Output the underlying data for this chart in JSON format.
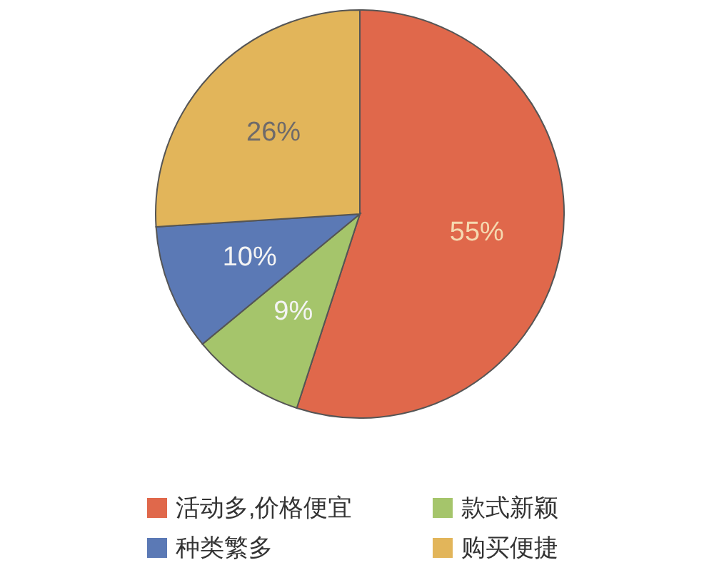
{
  "chart_data": {
    "type": "pie",
    "categories": [
      "活动多,价格便宜",
      "款式新颖",
      "种类繁多",
      "购买便捷"
    ],
    "values": [
      55,
      9,
      10,
      26
    ],
    "colors": [
      "#e0684b",
      "#a5c56b",
      "#5b79b5",
      "#e2b55a"
    ],
    "value_labels": [
      "55%",
      "9%",
      "10%",
      "26%"
    ],
    "legend": "bottom"
  }
}
